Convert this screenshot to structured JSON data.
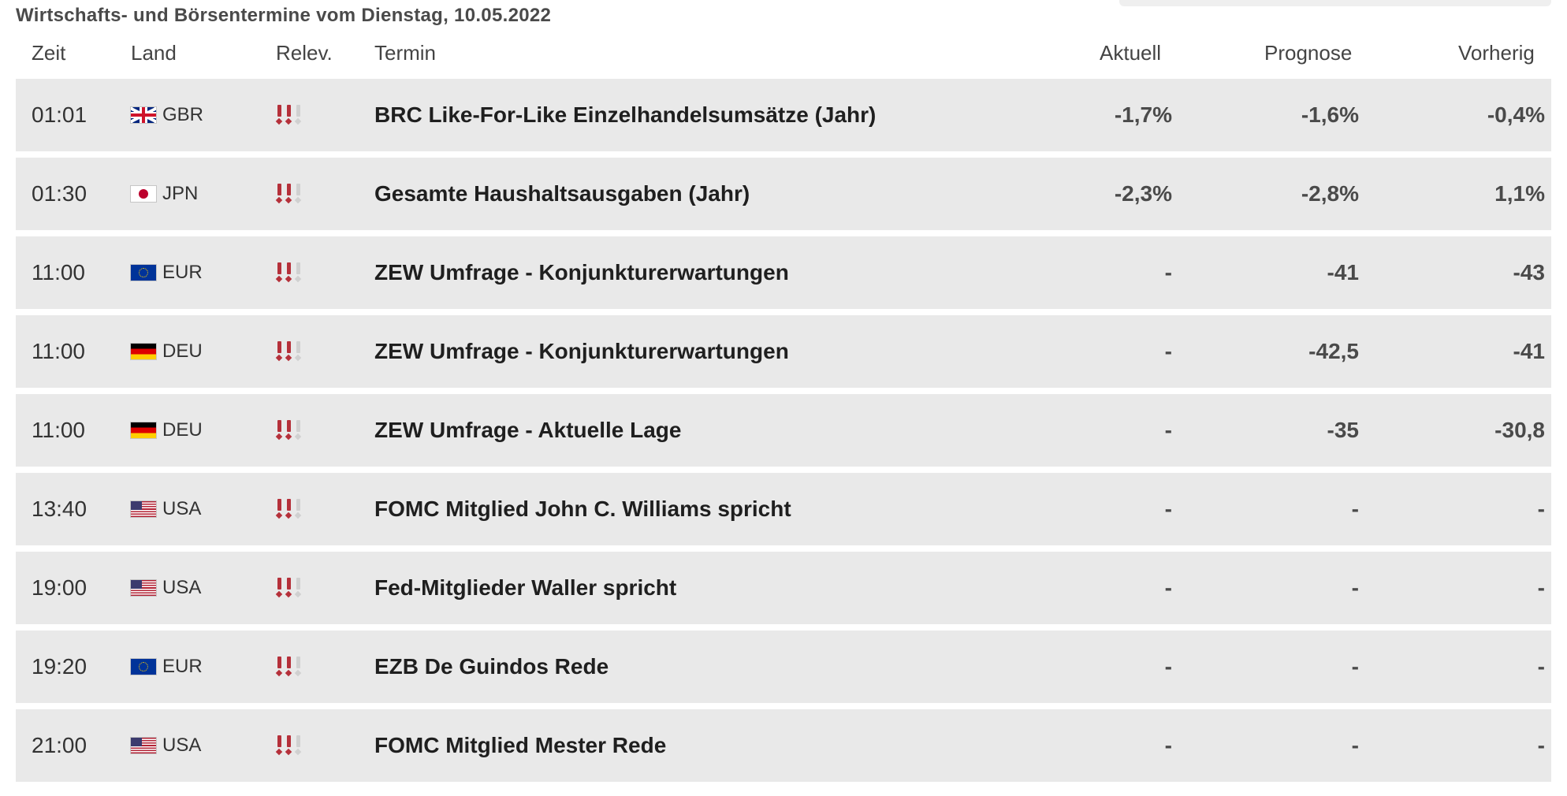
{
  "title": "Wirtschafts- und Börsentermine vom Dienstag, 10.05.2022",
  "columns": {
    "time": "Zeit",
    "country": "Land",
    "relevance": "Relev.",
    "event": "Termin",
    "actual": "Aktuell",
    "forecast": "Prognose",
    "previous": "Vorherig"
  },
  "colors": {
    "row_bg": "#e9e9e9",
    "relevance_active": "#b5303a",
    "relevance_inactive": "#d0d0d0"
  },
  "rows": [
    {
      "time": "01:01",
      "country": "GBR",
      "flag": "flag-gbr-icon",
      "relevance": 2,
      "event": "BRC Like-For-Like Einzelhandelsumsätze (Jahr)",
      "actual": "-1,7%",
      "forecast": "-1,6%",
      "previous": "-0,4%"
    },
    {
      "time": "01:30",
      "country": "JPN",
      "flag": "flag-jpn-icon",
      "relevance": 2,
      "event": "Gesamte Haushaltsausgaben (Jahr)",
      "actual": "-2,3%",
      "forecast": "-2,8%",
      "previous": "1,1%"
    },
    {
      "time": "11:00",
      "country": "EUR",
      "flag": "flag-eur-icon",
      "relevance": 2,
      "event": "ZEW Umfrage - Konjunkturerwartungen",
      "actual": "-",
      "forecast": "-41",
      "previous": "-43"
    },
    {
      "time": "11:00",
      "country": "DEU",
      "flag": "flag-deu-icon",
      "relevance": 2,
      "event": "ZEW Umfrage - Konjunkturerwartungen",
      "actual": "-",
      "forecast": "-42,5",
      "previous": "-41"
    },
    {
      "time": "11:00",
      "country": "DEU",
      "flag": "flag-deu-icon",
      "relevance": 2,
      "event": "ZEW Umfrage - Aktuelle Lage",
      "actual": "-",
      "forecast": "-35",
      "previous": "-30,8"
    },
    {
      "time": "13:40",
      "country": "USA",
      "flag": "flag-usa-icon",
      "relevance": 2,
      "event": "FOMC Mitglied John C. Williams spricht",
      "actual": "-",
      "forecast": "-",
      "previous": "-"
    },
    {
      "time": "19:00",
      "country": "USA",
      "flag": "flag-usa-icon",
      "relevance": 2,
      "event": "Fed-Mitglieder Waller spricht",
      "actual": "-",
      "forecast": "-",
      "previous": "-"
    },
    {
      "time": "19:20",
      "country": "EUR",
      "flag": "flag-eur-icon",
      "relevance": 2,
      "event": "EZB De Guindos Rede",
      "actual": "-",
      "forecast": "-",
      "previous": "-"
    },
    {
      "time": "21:00",
      "country": "USA",
      "flag": "flag-usa-icon",
      "relevance": 2,
      "event": "FOMC Mitglied Mester Rede",
      "actual": "-",
      "forecast": "-",
      "previous": "-"
    }
  ]
}
